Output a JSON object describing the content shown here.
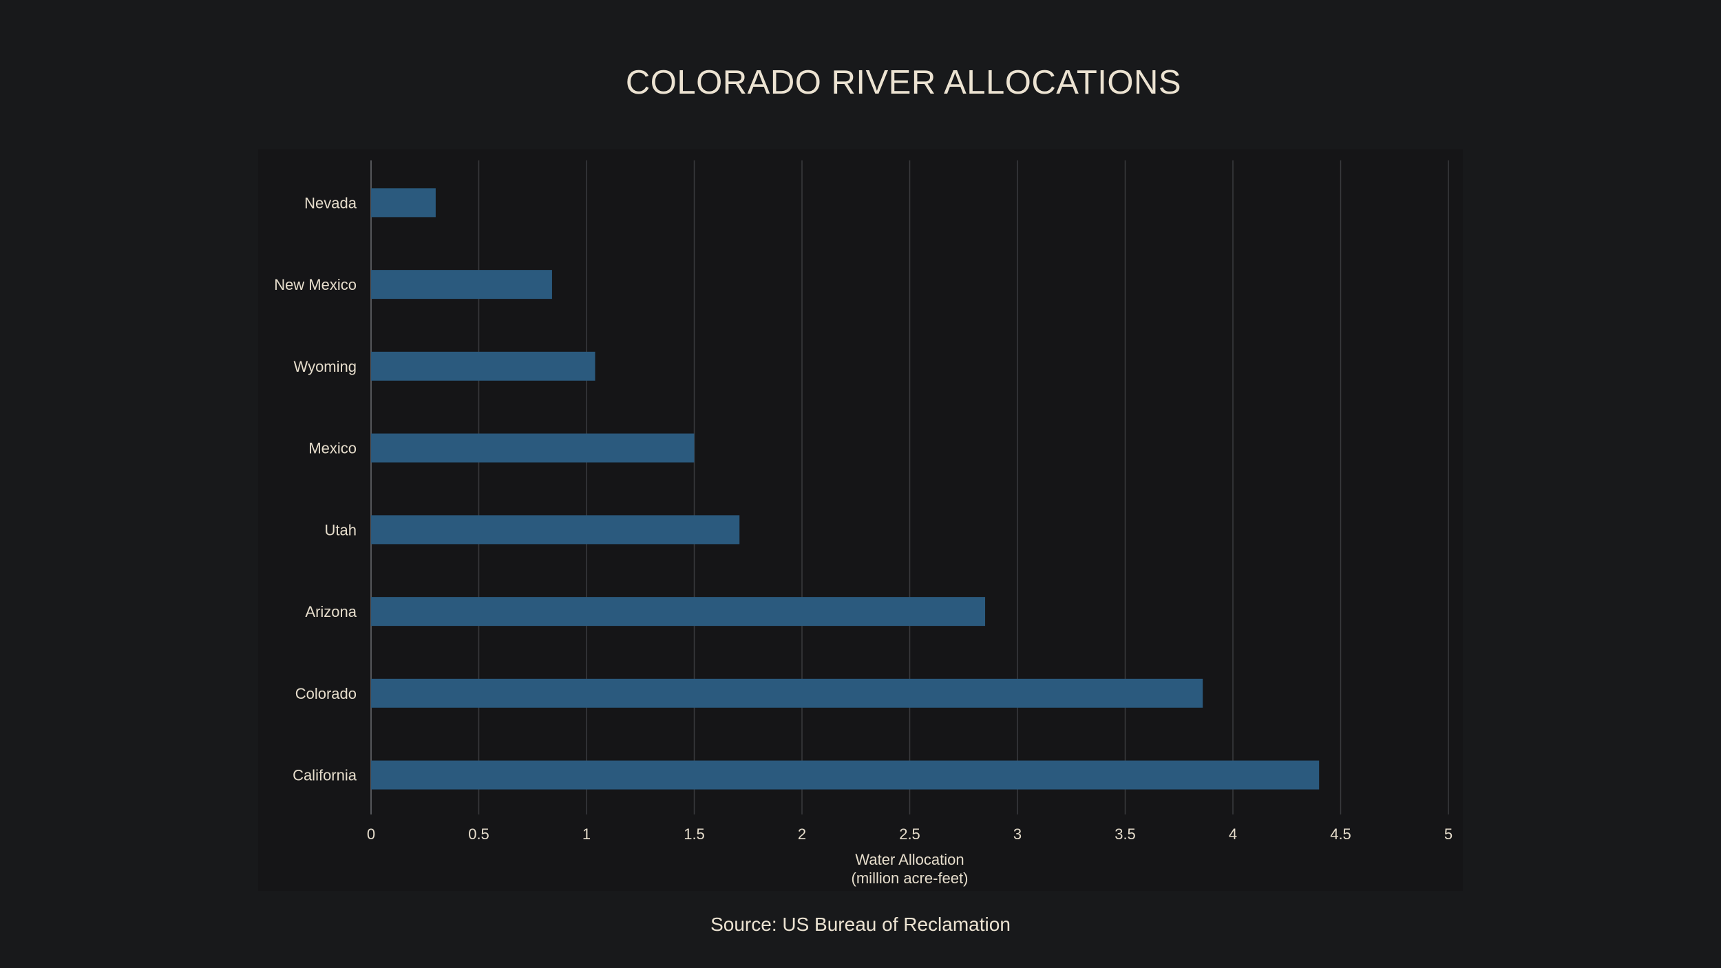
{
  "chart_data": {
    "type": "bar",
    "orientation": "horizontal",
    "title": "COLORADO RIVER ALLOCATIONS",
    "categories": [
      "Nevada",
      "New Mexico",
      "Wyoming",
      "Mexico",
      "Utah",
      "Arizona",
      "Colorado",
      "California"
    ],
    "values": [
      0.3,
      0.84,
      1.04,
      1.5,
      1.71,
      2.85,
      3.86,
      4.4
    ],
    "xlabel_line1": "Water Allocation",
    "xlabel_line2": "(million acre-feet)",
    "ylabel": "",
    "xlim": [
      0,
      5
    ],
    "xticks": [
      "0",
      "0.5",
      "1",
      "1.5",
      "2",
      "2.5",
      "3",
      "3.5",
      "4",
      "4.5",
      "5"
    ],
    "grid": "vertical",
    "bar_color": "#2b5a7e",
    "grid_color": "#3a3b3e",
    "background": "#151517",
    "page_background": "#18191b",
    "source": "Source: US Bureau of Reclamation"
  }
}
